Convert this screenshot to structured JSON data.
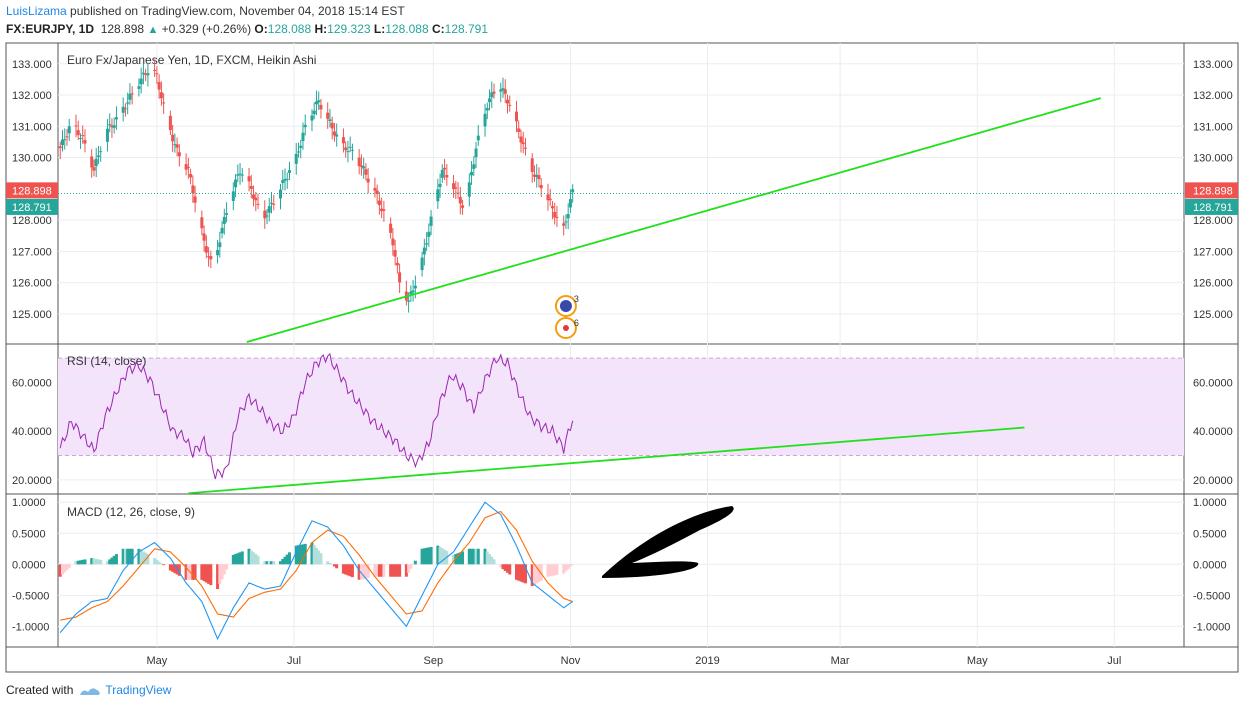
{
  "header": {
    "user": "LuisLizama",
    "published_text": "published on TradingView.com, November 04, 2018 15:14 EST",
    "symbol": "FX:EURJPY, 1D",
    "price": "128.898",
    "change_arrow": "▲",
    "change": "+0.329 (+0.26%)",
    "o_label": "O:",
    "o_value": "128.088",
    "h_label": "H:",
    "h_value": "129.323",
    "l_label": "L:",
    "l_value": "128.088",
    "c_label": "C:",
    "c_value": "128.791"
  },
  "footer": {
    "created_with": "Created with",
    "brand": "TradingView"
  },
  "colors": {
    "up": "#26a69a",
    "down": "#ef5350",
    "trend": "#22e01b",
    "rsi": "#9c27b0",
    "rsi_band": "#f3e3fb",
    "macd": "#2196f3",
    "signal": "#ff6d00",
    "arrow": "#000000",
    "grid": "#e9eef2"
  },
  "chart_data": [
    {
      "type": "candlestick",
      "title": "Euro Fx/Japanese Yen, 1D, FXCM, Heikin Ashi",
      "style": "Heikin Ashi",
      "ylim": [
        124.1,
        133.6
      ],
      "yticks": [
        "133.000",
        "132.000",
        "131.000",
        "130.000",
        "128.000",
        "127.000",
        "126.000",
        "125.000"
      ],
      "price_labels": {
        "last": "128.898",
        "close": "128.791"
      },
      "x_range": [
        "2018-03-18",
        "2019-08-01"
      ],
      "xticks": [
        "May",
        "Jul",
        "Sep",
        "Nov",
        "2019",
        "Mar",
        "May",
        "Jul"
      ],
      "close_series": {
        "x": [
          "2018-03-19",
          "2018-03-24",
          "2018-03-29",
          "2018-04-03",
          "2018-04-08",
          "2018-04-13",
          "2018-04-18",
          "2018-04-23",
          "2018-04-28",
          "2018-05-01",
          "2018-05-05",
          "2018-05-10",
          "2018-05-15",
          "2018-05-19",
          "2018-05-22",
          "2018-05-26",
          "2018-05-29",
          "2018-06-02",
          "2018-06-07",
          "2018-06-12",
          "2018-06-17",
          "2018-06-22",
          "2018-06-27",
          "2018-07-02",
          "2018-07-07",
          "2018-07-12",
          "2018-07-17",
          "2018-07-22",
          "2018-07-27",
          "2018-08-01",
          "2018-08-06",
          "2018-08-10",
          "2018-08-14",
          "2018-08-17",
          "2018-08-21",
          "2018-08-26",
          "2018-08-31",
          "2018-09-05",
          "2018-09-10",
          "2018-09-15",
          "2018-09-20",
          "2018-09-25",
          "2018-09-30",
          "2018-10-05",
          "2018-10-10",
          "2018-10-15",
          "2018-10-20",
          "2018-10-25",
          "2018-10-29",
          "2018-11-02"
        ],
        "close": [
          130.3,
          131.1,
          130.6,
          129.6,
          130.8,
          131.2,
          131.8,
          132.4,
          132.9,
          132.6,
          131.3,
          130.2,
          129.6,
          128.3,
          127.3,
          126.4,
          127.4,
          128.6,
          129.6,
          129.0,
          128.0,
          128.6,
          129.3,
          130.0,
          131.2,
          131.8,
          131.1,
          130.4,
          130.2,
          129.6,
          128.9,
          128.2,
          127.3,
          126.0,
          125.4,
          126.4,
          128.0,
          129.6,
          129.1,
          128.3,
          130.3,
          131.7,
          132.4,
          131.7,
          130.6,
          129.6,
          129.0,
          128.2,
          127.7,
          128.9
        ]
      },
      "annotations": [
        "3",
        "6"
      ]
    },
    {
      "type": "line",
      "title": "RSI (14, close)",
      "ylim": [
        15,
        75
      ],
      "yticks": [
        "60.0000",
        "40.0000",
        "20.0000"
      ],
      "band": [
        30,
        70
      ],
      "x": [
        "2018-03-19",
        "2018-03-24",
        "2018-03-29",
        "2018-04-03",
        "2018-04-08",
        "2018-04-13",
        "2018-04-18",
        "2018-04-23",
        "2018-04-28",
        "2018-05-03",
        "2018-05-08",
        "2018-05-13",
        "2018-05-17",
        "2018-05-22",
        "2018-05-27",
        "2018-06-01",
        "2018-06-06",
        "2018-06-11",
        "2018-06-16",
        "2018-06-21",
        "2018-06-26",
        "2018-07-01",
        "2018-07-06",
        "2018-07-11",
        "2018-07-16",
        "2018-07-21",
        "2018-07-26",
        "2018-07-31",
        "2018-08-05",
        "2018-08-10",
        "2018-08-15",
        "2018-08-20",
        "2018-08-25",
        "2018-08-30",
        "2018-09-04",
        "2018-09-09",
        "2018-09-14",
        "2018-09-19",
        "2018-09-24",
        "2018-09-29",
        "2018-10-04",
        "2018-10-09",
        "2018-10-14",
        "2018-10-19",
        "2018-10-24",
        "2018-10-29",
        "2018-11-02"
      ],
      "y": [
        33,
        44,
        38,
        32,
        46,
        56,
        65,
        67,
        61,
        51,
        40,
        38,
        31,
        36,
        22,
        24,
        46,
        54,
        49,
        43,
        40,
        46,
        60,
        68,
        71,
        64,
        56,
        50,
        44,
        40,
        36,
        30,
        27,
        35,
        52,
        63,
        58,
        49,
        61,
        70,
        68,
        56,
        46,
        42,
        40,
        33,
        45
      ]
    },
    {
      "type": "line",
      "title": "MACD (12, 26, close, 9)",
      "ylim": [
        -1.3,
        1.1
      ],
      "yticks": [
        "1.0000",
        "0.5000",
        "0.0000",
        "-0.5000",
        "-1.0000"
      ],
      "series": [
        {
          "x": [
            "2018-03-19",
            "2018-03-26",
            "2018-04-02",
            "2018-04-09",
            "2018-04-16",
            "2018-04-23",
            "2018-04-30",
            "2018-05-07",
            "2018-05-14",
            "2018-05-21",
            "2018-05-28",
            "2018-06-04",
            "2018-06-11",
            "2018-06-18",
            "2018-06-25",
            "2018-07-02",
            "2018-07-09",
            "2018-07-16",
            "2018-07-23",
            "2018-07-30",
            "2018-08-06",
            "2018-08-13",
            "2018-08-20",
            "2018-08-27",
            "2018-09-03",
            "2018-09-10",
            "2018-09-17",
            "2018-09-24",
            "2018-10-01",
            "2018-10-08",
            "2018-10-15",
            "2018-10-22",
            "2018-10-29",
            "2018-11-02"
          ],
          "y": [
            -1.1,
            -0.8,
            -0.6,
            -0.55,
            -0.1,
            0.2,
            0.35,
            0.1,
            -0.3,
            -0.6,
            -1.2,
            -0.7,
            -0.3,
            -0.4,
            -0.35,
            0.2,
            0.7,
            0.6,
            0.3,
            -0.1,
            -0.4,
            -0.7,
            -1.0,
            -0.5,
            0.0,
            0.2,
            0.6,
            1.0,
            0.8,
            0.3,
            -0.3,
            -0.5,
            -0.7,
            -0.6
          ]
        },
        {
          "x": [
            "2018-03-19",
            "2018-03-26",
            "2018-04-02",
            "2018-04-09",
            "2018-04-16",
            "2018-04-23",
            "2018-04-30",
            "2018-05-07",
            "2018-05-14",
            "2018-05-21",
            "2018-05-28",
            "2018-06-04",
            "2018-06-11",
            "2018-06-18",
            "2018-06-25",
            "2018-07-02",
            "2018-07-09",
            "2018-07-16",
            "2018-07-23",
            "2018-07-30",
            "2018-08-06",
            "2018-08-13",
            "2018-08-20",
            "2018-08-27",
            "2018-09-03",
            "2018-09-10",
            "2018-09-17",
            "2018-09-24",
            "2018-10-01",
            "2018-10-08",
            "2018-10-15",
            "2018-10-22",
            "2018-10-29",
            "2018-11-02"
          ],
          "y": [
            -0.9,
            -0.85,
            -0.7,
            -0.6,
            -0.35,
            -0.05,
            0.25,
            0.2,
            -0.05,
            -0.35,
            -0.8,
            -0.85,
            -0.55,
            -0.45,
            -0.4,
            -0.1,
            0.35,
            0.55,
            0.45,
            0.15,
            -0.2,
            -0.5,
            -0.8,
            -0.75,
            -0.3,
            0.05,
            0.35,
            0.75,
            0.85,
            0.55,
            0.05,
            -0.3,
            -0.55,
            -0.6
          ]
        }
      ]
    }
  ]
}
